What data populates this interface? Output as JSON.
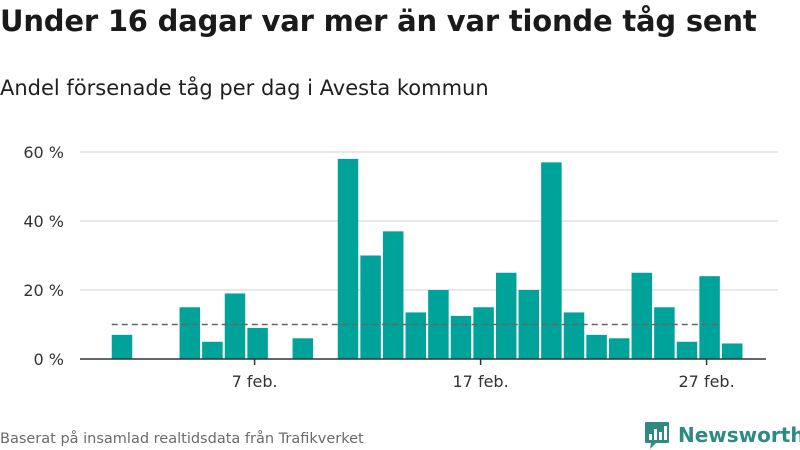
{
  "title": "Under 16 dagar var mer än var tionde tåg sent",
  "subtitle": "Andel försenade tåg per dag i Avesta kommun",
  "footer": "Baserat på insamlad realtidsdata från Trafikverket",
  "brand": {
    "name": "Newsworthy",
    "icon": "newsworthy-logo-icon",
    "color": "#2e8b84"
  },
  "colors": {
    "bar": "#00a39a",
    "grid": "#d9d9d9",
    "axis": "#333333",
    "reference_line": "#666666"
  },
  "chart_data": {
    "type": "bar",
    "title": "Under 16 dagar var mer än var tionde tåg sent",
    "subtitle": "Andel försenade tåg per dag i Avesta kommun",
    "x": [
      "1 feb.",
      "2 feb.",
      "3 feb.",
      "4 feb.",
      "5 feb.",
      "6 feb.",
      "7 feb.",
      "8 feb.",
      "9 feb.",
      "10 feb.",
      "11 feb.",
      "12 feb.",
      "13 feb.",
      "14 feb.",
      "15 feb.",
      "16 feb.",
      "17 feb.",
      "18 feb.",
      "19 feb.",
      "20 feb.",
      "21 feb.",
      "22 feb.",
      "23 feb.",
      "24 feb.",
      "25 feb.",
      "26 feb.",
      "27 feb.",
      "28 feb."
    ],
    "values": [
      7,
      null,
      null,
      15,
      5,
      19,
      9,
      null,
      6,
      null,
      58,
      30,
      37,
      13.5,
      20,
      12.5,
      15,
      25,
      20,
      57,
      13.5,
      7,
      6,
      25,
      15,
      5,
      24,
      4.5
    ],
    "x_tick_labels": [
      "7 feb.",
      "17 feb.",
      "27 feb."
    ],
    "y_tick_labels": [
      "0 %",
      "20 %",
      "40 %",
      "60 %"
    ],
    "y_ticks": [
      0,
      20,
      40,
      60
    ],
    "ylim": [
      0,
      60
    ],
    "reference_line": {
      "value": 10,
      "style": "dashed"
    },
    "grid": true,
    "xlabel": "",
    "ylabel": ""
  }
}
